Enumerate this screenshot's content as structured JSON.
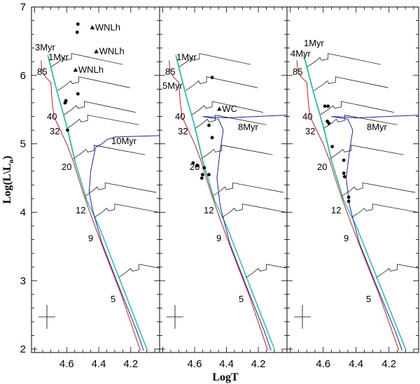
{
  "chart_data": [
    {
      "type": "scatter",
      "panel": 1,
      "xlabel": "LogT",
      "ylabel": "Log(L\\L",
      "ylabel_sub": "o",
      "ylabel_close": ")",
      "xlim": [
        4.82,
        4.02
      ],
      "ylim": [
        1.95,
        7.0
      ],
      "x_ticks": [
        4.6,
        4.4,
        4.2
      ],
      "x_tick_labels": [
        "4.6",
        "4.4",
        "4.2"
      ],
      "y_ticks": [
        2,
        3,
        4,
        5,
        6,
        7
      ],
      "y_tick_labels": [
        "2",
        "3",
        "4",
        "5",
        "6",
        "7"
      ],
      "points": [
        {
          "x": 4.53,
          "y": 6.75
        },
        {
          "x": 4.535,
          "y": 6.63
        },
        {
          "x": 4.53,
          "y": 5.73
        },
        {
          "x": 4.605,
          "y": 5.63
        },
        {
          "x": 4.61,
          "y": 5.6
        },
        {
          "x": 4.595,
          "y": 5.2
        }
      ],
      "triangles": [
        {
          "x": 4.44,
          "y": 6.7,
          "label": "WNLh"
        },
        {
          "x": 4.415,
          "y": 6.35,
          "label": "WNLh"
        },
        {
          "x": 4.545,
          "y": 6.08,
          "label": "WNLh"
        }
      ],
      "isochrone_labels": [
        "3Myr",
        "1Myr",
        "10Myr"
      ],
      "mass_labels": [
        "85",
        "40",
        "32",
        "20",
        "12",
        "9",
        "5"
      ]
    },
    {
      "type": "scatter",
      "panel": 2,
      "xlabel": "LogT",
      "xlim": [
        4.82,
        4.02
      ],
      "ylim": [
        1.95,
        7.0
      ],
      "x_ticks": [
        4.6,
        4.4,
        4.2
      ],
      "x_tick_labels": [
        "4.6",
        "4.4",
        "4.2"
      ],
      "points": [
        {
          "x": 4.49,
          "y": 5.97
        },
        {
          "x": 4.51,
          "y": 5.27
        },
        {
          "x": 4.49,
          "y": 5.09
        },
        {
          "x": 4.61,
          "y": 4.72
        },
        {
          "x": 4.585,
          "y": 4.68
        },
        {
          "x": 4.54,
          "y": 4.65
        },
        {
          "x": 4.51,
          "y": 4.55
        },
        {
          "x": 4.55,
          "y": 4.55
        },
        {
          "x": 4.555,
          "y": 4.5
        }
      ],
      "triangles": [
        {
          "x": 4.445,
          "y": 5.51,
          "label": "WC"
        }
      ],
      "isochrone_labels": [
        "1Myr",
        "5Myr",
        "8Myr"
      ],
      "mass_labels": [
        "85",
        "40",
        "32",
        "20",
        "12",
        "9",
        "5"
      ]
    },
    {
      "type": "scatter",
      "panel": 3,
      "xlabel": "LogT",
      "xlim": [
        4.82,
        4.02
      ],
      "ylim": [
        1.95,
        7.0
      ],
      "x_ticks": [
        4.6,
        4.4,
        4.2
      ],
      "x_tick_labels": [
        "4.6",
        "4.4",
        "4.2"
      ],
      "points": [
        {
          "x": 4.59,
          "y": 5.55
        },
        {
          "x": 4.57,
          "y": 5.55
        },
        {
          "x": 4.575,
          "y": 5.33
        },
        {
          "x": 4.565,
          "y": 5.3
        },
        {
          "x": 4.545,
          "y": 4.96
        },
        {
          "x": 4.475,
          "y": 4.76
        },
        {
          "x": 4.475,
          "y": 4.57
        },
        {
          "x": 4.47,
          "y": 4.52
        },
        {
          "x": 4.445,
          "y": 4.22
        },
        {
          "x": 4.445,
          "y": 4.16
        }
      ],
      "triangles": [],
      "isochrone_labels": [
        "1Myr",
        "4Myr",
        "8Myr"
      ],
      "mass_labels": [
        "85",
        "40",
        "32",
        "20",
        "12",
        "9",
        "5"
      ]
    }
  ]
}
